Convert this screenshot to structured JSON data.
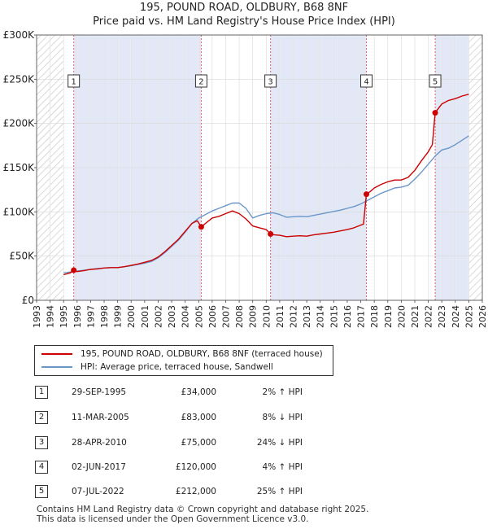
{
  "title": "195, POUND ROAD, OLDBURY, B68 8NF",
  "subtitle": "Price paid vs. HM Land Registry's House Price Index (HPI)",
  "colors": {
    "price_line": "#cc0000",
    "hpi_line": "#6b96c8",
    "shade": "#dde4f4",
    "hatch": "#c0c0c0",
    "marker_line": "#e06070"
  },
  "legend": [
    {
      "label": "195, POUND ROAD, OLDBURY, B68 8NF (terraced house)",
      "color": "#cc0000"
    },
    {
      "label": "HPI: Average price, terraced house, Sandwell",
      "color": "#6b96c8"
    }
  ],
  "sales": [
    {
      "num": "1",
      "date": "29-SEP-1995",
      "price": "£34,000",
      "hpi": "2% ↑ HPI"
    },
    {
      "num": "2",
      "date": "11-MAR-2005",
      "price": "£83,000",
      "hpi": "8% ↓ HPI"
    },
    {
      "num": "3",
      "date": "28-APR-2010",
      "price": "£75,000",
      "hpi": "24% ↓ HPI"
    },
    {
      "num": "4",
      "date": "02-JUN-2017",
      "price": "£120,000",
      "hpi": "4% ↑ HPI"
    },
    {
      "num": "5",
      "date": "07-JUL-2022",
      "price": "£212,000",
      "hpi": "25% ↑ HPI"
    }
  ],
  "footer": {
    "line1": "Contains HM Land Registry data © Crown copyright and database right 2025.",
    "line2": "This data is licensed under the Open Government Licence v3.0."
  },
  "chart_data": {
    "type": "line",
    "title": "195, POUND ROAD, OLDBURY, B68 8NF",
    "subtitle": "Price paid vs. HM Land Registry's House Price Index (HPI)",
    "xlim": [
      1993,
      2026
    ],
    "ylim": [
      0,
      300000
    ],
    "x_ticks": [
      1993,
      1994,
      1995,
      1996,
      1997,
      1998,
      1999,
      2000,
      2001,
      2002,
      2003,
      2004,
      2005,
      2006,
      2007,
      2008,
      2009,
      2010,
      2011,
      2012,
      2013,
      2014,
      2015,
      2016,
      2017,
      2018,
      2019,
      2020,
      2021,
      2022,
      2023,
      2024,
      2025,
      2026
    ],
    "y_ticks": [
      {
        "value": 0,
        "label": "£0"
      },
      {
        "value": 50000,
        "label": "£50K"
      },
      {
        "value": 100000,
        "label": "£100K"
      },
      {
        "value": 150000,
        "label": "£150K"
      },
      {
        "value": 200000,
        "label": "£200K"
      },
      {
        "value": 250000,
        "label": "£250K"
      },
      {
        "value": 300000,
        "label": "£300K"
      }
    ],
    "hatch_ranges": [
      [
        1993,
        1995.0
      ],
      [
        2025.0,
        2026
      ]
    ],
    "sale_markers": [
      {
        "num": "1",
        "x": 1995.75,
        "y": 34000
      },
      {
        "num": "2",
        "x": 2005.19,
        "y": 83000
      },
      {
        "num": "3",
        "x": 2010.32,
        "y": 75000
      },
      {
        "num": "4",
        "x": 2017.42,
        "y": 120000
      },
      {
        "num": "5",
        "x": 2022.51,
        "y": 212000
      }
    ],
    "series": [
      {
        "name": "195, POUND ROAD, OLDBURY, B68 8NF (terraced house)",
        "x": [
          1995.0,
          1995.5,
          1995.75,
          1996.0,
          1996.5,
          1997,
          1997.5,
          1998,
          1998.5,
          1999,
          1999.5,
          2000,
          2000.5,
          2001,
          2001.5,
          2002,
          2002.5,
          2003,
          2003.5,
          2004,
          2004.5,
          2004.9,
          2005.19,
          2005.5,
          2006,
          2006.5,
          2007,
          2007.5,
          2008,
          2008.5,
          2009,
          2009.5,
          2010.0,
          2010.32,
          2010.6,
          2011,
          2011.5,
          2012,
          2012.5,
          2013,
          2013.5,
          2014,
          2014.5,
          2015,
          2015.5,
          2016,
          2016.5,
          2017.0,
          2017.2,
          2017.42,
          2017.7,
          2018,
          2018.5,
          2019,
          2019.5,
          2020,
          2020.5,
          2021,
          2021.5,
          2022.0,
          2022.3,
          2022.51,
          2022.8,
          2023,
          2023.5,
          2024,
          2024.5,
          2025.0
        ],
        "values": [
          29000,
          31000,
          34000,
          32500,
          33500,
          35000,
          35500,
          36500,
          37000,
          37000,
          38000,
          39500,
          41000,
          43000,
          45000,
          49000,
          55000,
          62000,
          69000,
          78000,
          87000,
          90000,
          83000,
          87000,
          93000,
          95000,
          98000,
          101000,
          98000,
          92000,
          84000,
          82000,
          80000,
          75000,
          74000,
          73500,
          72000,
          72500,
          73000,
          72500,
          74000,
          75000,
          76000,
          77000,
          78500,
          80000,
          82000,
          85000,
          86000,
          120000,
          123000,
          127000,
          131000,
          134000,
          136000,
          136000,
          139000,
          147000,
          158000,
          168000,
          176000,
          212000,
          218000,
          222000,
          226000,
          228000,
          231000,
          233000
        ]
      },
      {
        "name": "HPI: Average price, terraced house, Sandwell",
        "x": [
          1995.0,
          1995.5,
          1996,
          1996.5,
          1997,
          1997.5,
          1998,
          1998.5,
          1999,
          1999.5,
          2000,
          2000.5,
          2001,
          2001.5,
          2002,
          2002.5,
          2003,
          2003.5,
          2004,
          2004.5,
          2005,
          2005.5,
          2006,
          2006.5,
          2007,
          2007.5,
          2008,
          2008.5,
          2009,
          2009.5,
          2010,
          2010.5,
          2011,
          2011.5,
          2012,
          2012.5,
          2013,
          2013.5,
          2014,
          2014.5,
          2015,
          2015.5,
          2016,
          2016.5,
          2017,
          2017.5,
          2018,
          2018.5,
          2019,
          2019.5,
          2020,
          2020.5,
          2021,
          2021.5,
          2022,
          2022.5,
          2023,
          2023.5,
          2024,
          2024.5,
          2025.0
        ],
        "values": [
          31000,
          32000,
          33000,
          34000,
          35000,
          36000,
          36500,
          37000,
          37000,
          38000,
          39000,
          40500,
          42000,
          44000,
          48000,
          54000,
          61000,
          68000,
          77000,
          87000,
          93000,
          97000,
          101000,
          104000,
          107000,
          110000,
          110000,
          104000,
          93000,
          96000,
          98000,
          99000,
          97000,
          94000,
          94500,
          95000,
          94500,
          96000,
          97500,
          99000,
          100500,
          102000,
          104000,
          106000,
          109000,
          113000,
          117000,
          121000,
          124000,
          127000,
          128000,
          130000,
          137000,
          145000,
          154000,
          163000,
          170000,
          172000,
          176000,
          181000,
          186000
        ]
      }
    ]
  }
}
